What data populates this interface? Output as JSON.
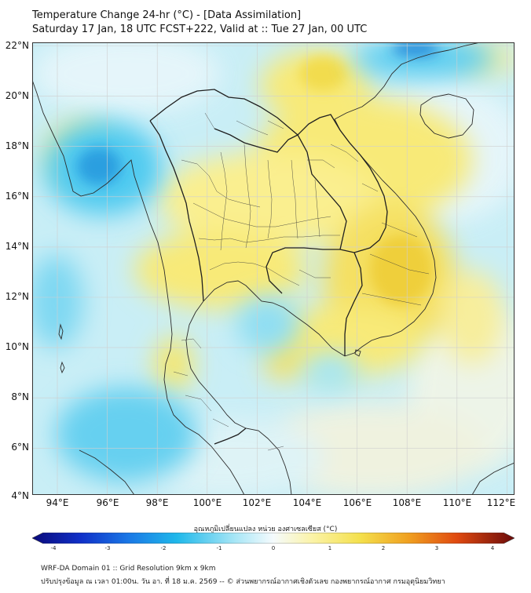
{
  "title": {
    "line1": "Temperature Change 24-hr (°C) - [Data Assimilation]",
    "line2": "Saturday 17 Jan, 18 UTC FCST+222, Valid at :: Tue 27 Jan, 00 UTC"
  },
  "map": {
    "lat_labels": [
      "22°N",
      "20°N",
      "18°N",
      "16°N",
      "14°N",
      "12°N",
      "10°N",
      "8°N",
      "6°N",
      "4°N"
    ],
    "lon_labels": [
      "94°E",
      "96°E",
      "98°E",
      "100°E",
      "102°E",
      "104°E",
      "106°E",
      "108°E",
      "110°E",
      "112°E"
    ],
    "region": "Thailand and mainland Southeast Asia",
    "colors": {
      "ocean_background": "#bdecf5",
      "cold": "#1fb8ea",
      "cold_strong": "#2a7fd6",
      "warm": "#f8ea78",
      "warm_strong": "#efcf3a",
      "neutral": "#eaf7fb",
      "border": "#2b2b2b",
      "grid": "#cccccc"
    }
  },
  "colorbar": {
    "title": "อุณหภูมิเปลี่ยนแปลง หน่วย องศาเซลเซียส (°C)",
    "ticks": [
      "-4",
      "-3",
      "-2",
      "-1",
      "0",
      "1",
      "2",
      "3",
      "4"
    ]
  },
  "footer": {
    "line1": "WRF-DA Domain 01 :: Grid Resolution 9km x 9km",
    "line2": "ปรับปรุงข้อมูล ณ เวลา 01:00น. วัน อา. ที่ 18 ม.ค. 2569 -- © ส่วนพยากรณ์อากาศเชิงตัวเลข กองพยากรณ์อากาศ กรมอุตุนิยมวิทยา"
  }
}
